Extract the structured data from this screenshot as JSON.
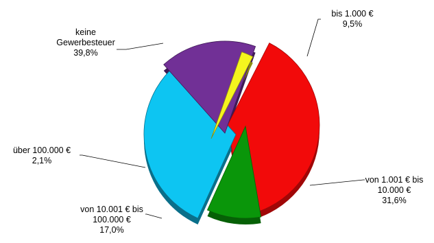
{
  "chart_data": {
    "type": "pie",
    "style": "3d-exploded",
    "title": "",
    "slices": [
      {
        "label_lines": [
          "keine",
          "Gewerbesteuer"
        ],
        "value_text": "39,8%",
        "value": 39.8,
        "color": "#f20a0a",
        "side": "#a00707"
      },
      {
        "label_lines": [
          "bis 1.000 €"
        ],
        "value_text": "9,5%",
        "value": 9.5,
        "color": "#0a960a",
        "side": "#066006"
      },
      {
        "label_lines": [
          "von 1.001 € bis",
          "10.000 €"
        ],
        "value_text": "31,6%",
        "value": 31.6,
        "color": "#0dc5f2",
        "side": "#0a6f8a"
      },
      {
        "label_lines": [
          "von 10.001 € bis",
          "100.000 €"
        ],
        "value_text": "17,0%",
        "value": 17.0,
        "color": "#713096",
        "side": "#3f1a56"
      },
      {
        "label_lines": [
          "über 100.000 €"
        ],
        "value_text": "2,1%",
        "value": 2.1,
        "color": "#f5f51e",
        "side": "#8a8a10"
      }
    ]
  }
}
